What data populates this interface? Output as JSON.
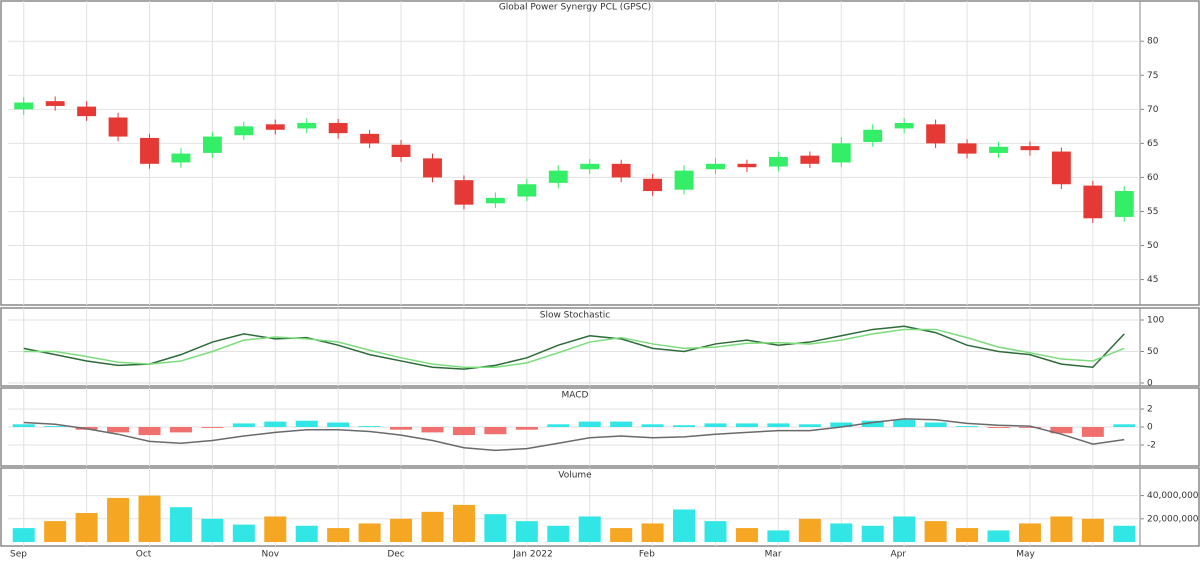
{
  "chart_data": [
    {
      "type": "candlestick",
      "title": "Global Power Synergy PCL (GPSC)",
      "categories": [
        "Sep",
        null,
        null,
        null,
        "Oct",
        null,
        null,
        null,
        "Nov",
        null,
        null,
        null,
        "Dec",
        null,
        null,
        null,
        "Jan 2022",
        null,
        null,
        null,
        "Feb",
        null,
        null,
        null,
        "Mar",
        null,
        null,
        null,
        "Apr",
        null,
        null,
        null,
        "May",
        null,
        null,
        null
      ],
      "open": [
        70,
        71.2,
        70.4,
        68.8,
        65.8,
        62.2,
        63.6,
        66.2,
        67.8,
        67.2,
        68,
        66.4,
        64.8,
        62.8,
        59.6,
        56.2,
        57.2,
        59.2,
        61.2,
        62,
        59.8,
        58.2,
        61.2,
        62,
        61.6,
        63.2,
        62.2,
        65.2,
        67.2,
        67.8,
        65,
        63.6,
        64.6,
        63.8,
        58.8,
        54.2
      ],
      "high": [
        71.8,
        71.9,
        71.2,
        69.5,
        66.4,
        64.3,
        66.7,
        68.2,
        68.5,
        68.7,
        68.6,
        67,
        65.5,
        63.5,
        60.3,
        57.8,
        59.8,
        61.8,
        62.7,
        62.6,
        60.5,
        61.8,
        62.8,
        62.6,
        63.8,
        63.8,
        65.9,
        67.8,
        68.7,
        68.5,
        65.6,
        65.2,
        65.3,
        64.4,
        59.5,
        58.7
      ],
      "low": [
        69.2,
        69.8,
        68.3,
        65.3,
        61.3,
        61.4,
        62.9,
        65.5,
        66.3,
        66.5,
        65.7,
        64.3,
        62.3,
        59.3,
        55.3,
        55.5,
        56.5,
        58.4,
        60.5,
        59.3,
        57.3,
        57.5,
        60.5,
        60.8,
        60.9,
        61.4,
        61.5,
        64.5,
        66.5,
        64.3,
        62.8,
        62.9,
        63.2,
        58.3,
        53.3,
        53.5
      ],
      "close": [
        71,
        70.5,
        69,
        66,
        62,
        63.5,
        66,
        67.5,
        67,
        68,
        66.5,
        65,
        63,
        60,
        56,
        57,
        59,
        61,
        62,
        60,
        58,
        61,
        62,
        61.5,
        63,
        62,
        65,
        67,
        68,
        65,
        63.5,
        64.5,
        64,
        59,
        54,
        58
      ],
      "up_color": "#33ee66",
      "down_color": "#e53935",
      "ylim": [
        42,
        84
      ],
      "yticks": [
        45,
        50,
        55,
        60,
        65,
        70,
        75,
        80
      ],
      "grid": true
    },
    {
      "type": "line",
      "title": "Slow Stochastic",
      "series": [
        {
          "color": "#2e6b3a",
          "values": [
            55,
            45,
            35,
            28,
            30,
            45,
            65,
            78,
            70,
            72,
            60,
            45,
            35,
            25,
            22,
            28,
            40,
            60,
            75,
            70,
            55,
            50,
            62,
            68,
            60,
            65,
            75,
            85,
            90,
            80,
            60,
            50,
            45,
            30,
            25,
            78
          ]
        },
        {
          "color": "#7ddc7d",
          "values": [
            50,
            50,
            42,
            33,
            30,
            35,
            50,
            68,
            73,
            70,
            65,
            52,
            40,
            30,
            25,
            25,
            32,
            48,
            65,
            72,
            62,
            55,
            57,
            63,
            64,
            62,
            68,
            78,
            85,
            85,
            72,
            57,
            48,
            38,
            35,
            55
          ]
        }
      ],
      "ylim": [
        0,
        100
      ],
      "yticks": [
        0,
        50,
        100
      ],
      "grid": true
    },
    {
      "type": "macd",
      "title": "MACD",
      "macd": [
        0.5,
        0.3,
        -0.2,
        -0.8,
        -1.6,
        -1.8,
        -1.5,
        -1.0,
        -0.6,
        -0.3,
        -0.3,
        -0.5,
        -0.9,
        -1.5,
        -2.3,
        -2.6,
        -2.4,
        -1.8,
        -1.2,
        -1.0,
        -1.2,
        -1.1,
        -0.8,
        -0.6,
        -0.4,
        -0.4,
        0.0,
        0.5,
        0.9,
        0.8,
        0.4,
        0.2,
        0.1,
        -0.8,
        -1.9,
        -1.4
      ],
      "histogram": [
        0.3,
        0.1,
        -0.3,
        -0.6,
        -0.9,
        -0.6,
        -0.1,
        0.4,
        0.6,
        0.7,
        0.5,
        0.1,
        -0.3,
        -0.6,
        -0.9,
        -0.8,
        -0.3,
        0.3,
        0.6,
        0.6,
        0.3,
        0.2,
        0.4,
        0.4,
        0.4,
        0.3,
        0.5,
        0.7,
        0.8,
        0.5,
        0.1,
        -0.1,
        -0.1,
        -0.7,
        -1.1,
        0.3
      ],
      "line_color": "#6a6a6a",
      "positive_color": "#33e6e6",
      "negative_color": "#f07070",
      "ylim": [
        -4,
        3
      ],
      "yticks": [
        -2,
        0,
        2
      ],
      "grid": true
    },
    {
      "type": "bar",
      "title": "Volume",
      "values": [
        12000000,
        18000000,
        25000000,
        38000000,
        40000000,
        30000000,
        20000000,
        15000000,
        22000000,
        14000000,
        12000000,
        16000000,
        20000000,
        26000000,
        32000000,
        24000000,
        18000000,
        14000000,
        22000000,
        12000000,
        16000000,
        28000000,
        18000000,
        12000000,
        10000000,
        20000000,
        16000000,
        14000000,
        22000000,
        18000000,
        12000000,
        10000000,
        16000000,
        22000000,
        20000000,
        14000000
      ],
      "up_color": "#33e6e6",
      "down_color": "#f5a623",
      "ylim": [
        0,
        50000000
      ],
      "yticks": [
        {
          "value": 20000000,
          "label": "20,000,000"
        },
        {
          "value": 40000000,
          "label": "40,000,000"
        }
      ],
      "grid": true
    }
  ]
}
